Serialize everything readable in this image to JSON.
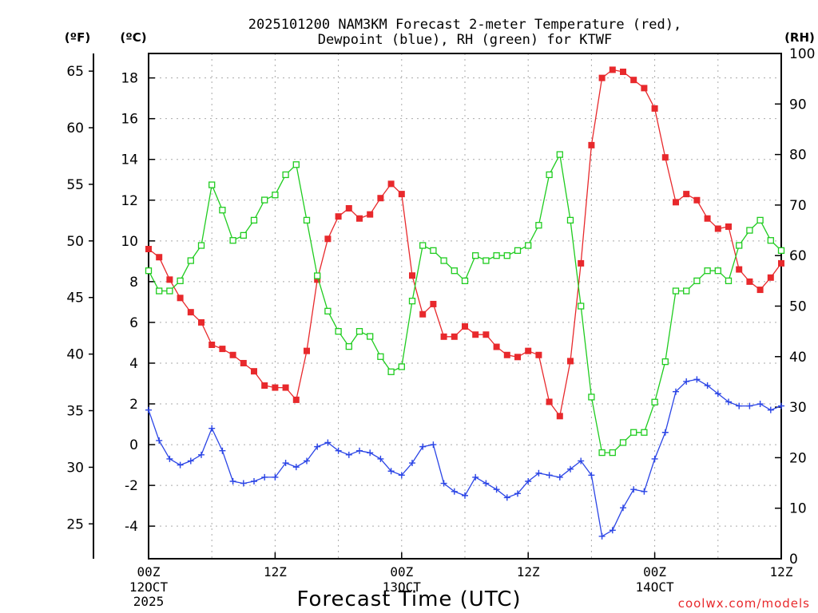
{
  "chart_data": {
    "type": "line",
    "title_line1": "2025101200 NAM3KM Forecast 2-meter Temperature (red),",
    "title_line2": "Dewpoint (blue), RH (green) for KTWF",
    "xlabel": "Forecast Time (UTC)",
    "credit": "coolwx.com/models",
    "left_unit_f": "(ºF)",
    "left_unit_c": "(ºC)",
    "right_unit": "(RH)",
    "ylim_c": [
      -5.6,
      19.2
    ],
    "ylim_rh": [
      0,
      100
    ],
    "x_range_hours": [
      0,
      60
    ],
    "x_ticks": [
      {
        "hour": 0,
        "label": "00Z",
        "sub1": "12OCT",
        "sub2": "2025"
      },
      {
        "hour": 12,
        "label": "12Z",
        "sub1": "",
        "sub2": ""
      },
      {
        "hour": 24,
        "label": "00Z",
        "sub1": "13OCT",
        "sub2": ""
      },
      {
        "hour": 36,
        "label": "12Z",
        "sub1": "",
        "sub2": ""
      },
      {
        "hour": 48,
        "label": "00Z",
        "sub1": "14OCT",
        "sub2": ""
      },
      {
        "hour": 60,
        "label": "12Z",
        "sub1": "",
        "sub2": ""
      }
    ],
    "y_ticks_c": [
      -4,
      -2,
      0,
      2,
      4,
      6,
      8,
      10,
      12,
      14,
      16,
      18
    ],
    "y_ticks_f": [
      25,
      30,
      35,
      40,
      45,
      50,
      55,
      60,
      65
    ],
    "y_ticks_rh": [
      0,
      10,
      20,
      30,
      40,
      50,
      60,
      70,
      80,
      90,
      100
    ],
    "colors": {
      "temperature": "#e8292c",
      "dewpoint": "#2b45e6",
      "rh": "#1fcc1f",
      "grid": "#aaaaaa"
    },
    "series": [
      {
        "name": "Temperature",
        "unit": "C",
        "color": "#e8292c",
        "marker": "filled-square",
        "values": [
          9.6,
          9.2,
          8.1,
          7.2,
          6.5,
          6.0,
          4.9,
          4.7,
          4.4,
          4.0,
          3.6,
          2.9,
          2.8,
          2.8,
          2.2,
          4.6,
          8.1,
          10.1,
          11.2,
          11.6,
          11.1,
          11.3,
          12.1,
          12.8,
          12.3,
          8.3,
          6.4,
          6.9,
          5.3,
          5.3,
          5.8,
          5.4,
          5.4,
          4.8,
          4.4,
          4.3,
          4.6,
          4.4,
          2.1,
          1.4,
          4.1,
          8.9,
          14.7,
          18.0,
          18.4,
          18.3,
          17.9,
          17.5,
          16.5,
          14.1,
          11.9,
          12.3,
          12.0,
          11.1,
          10.6,
          10.7,
          8.6,
          8.0,
          7.6,
          8.2,
          8.9
        ]
      },
      {
        "name": "Dewpoint",
        "unit": "C",
        "color": "#2b45e6",
        "marker": "plus",
        "values": [
          1.7,
          0.2,
          -0.7,
          -1.0,
          -0.8,
          -0.5,
          0.8,
          -0.3,
          -1.8,
          -1.9,
          -1.8,
          -1.6,
          -1.6,
          -0.9,
          -1.1,
          -0.8,
          -0.1,
          0.1,
          -0.3,
          -0.5,
          -0.3,
          -0.4,
          -0.7,
          -1.3,
          -1.5,
          -0.9,
          -0.1,
          0.0,
          -1.9,
          -2.3,
          -2.5,
          -1.6,
          -1.9,
          -2.2,
          -2.6,
          -2.4,
          -1.8,
          -1.4,
          -1.5,
          -1.6,
          -1.2,
          -0.8,
          -1.5,
          -4.5,
          -4.2,
          -3.1,
          -2.2,
          -2.3,
          -0.7,
          0.6,
          2.6,
          3.1,
          3.2,
          2.9,
          2.5,
          2.1,
          1.9,
          1.9,
          2.0,
          1.7,
          1.9
        ]
      },
      {
        "name": "RH",
        "unit": "%",
        "color": "#1fcc1f",
        "marker": "open-square",
        "values": [
          57,
          53,
          53,
          55,
          59,
          62,
          74,
          69,
          63,
          64,
          67,
          71,
          72,
          76,
          78,
          67,
          56,
          49,
          45,
          42,
          45,
          44,
          40,
          37,
          38,
          51,
          62,
          61,
          59,
          57,
          55,
          60,
          59,
          60,
          60,
          61,
          62,
          66,
          76,
          80,
          67,
          50,
          32,
          21,
          21,
          23,
          25,
          25,
          31,
          39,
          53,
          53,
          55,
          57,
          57,
          55,
          62,
          65,
          67,
          63,
          61
        ]
      }
    ]
  }
}
